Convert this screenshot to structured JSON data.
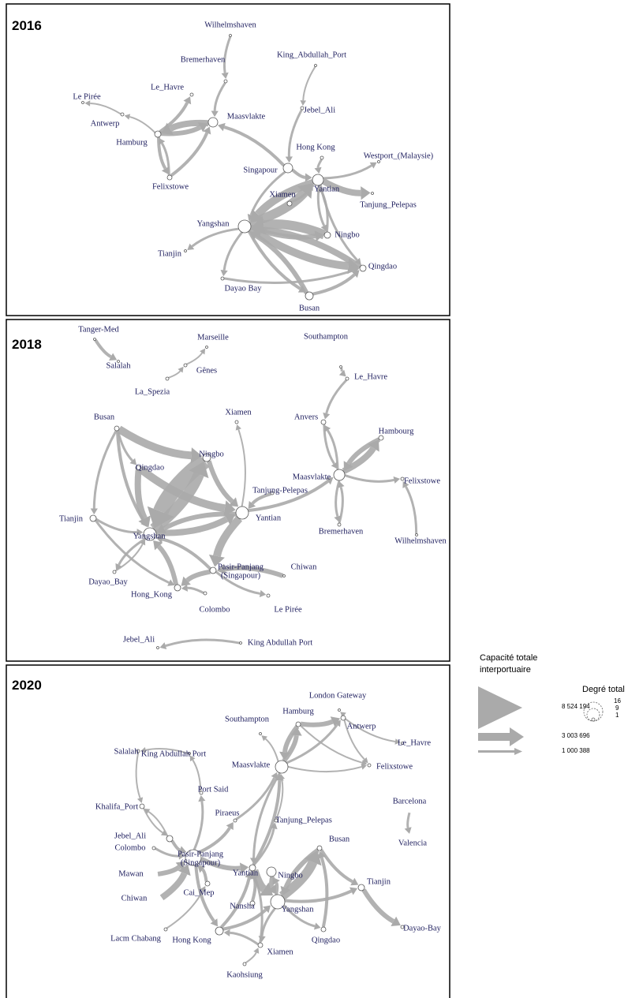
{
  "panels": [
    {
      "year": "2016",
      "nodes": [
        "Wilhelmshaven",
        "Bremerhaven",
        "King_Abdullah_Port",
        "Le_Havre",
        "Le Pirée",
        "Maasvlakte",
        "Antwerp",
        "Jebel_Ali",
        "Hamburg",
        "Hong Kong",
        "Westport_(Malaysie)",
        "Singapour",
        "Felixstowe",
        "Xiamen",
        "Yantian",
        "Tanjung_Pelepas",
        "Yangshan",
        "Ningbo",
        "Tianjin",
        "Qingdao",
        "Dayao Bay",
        "Busan"
      ]
    },
    {
      "year": "2018",
      "nodes": [
        "Tanger-Med",
        "Salalah",
        "Marseille",
        "Gênes",
        "La_Spezia",
        "Southampton",
        "Le_Havre",
        "Anvers",
        "Busan",
        "Xiamen",
        "Hambourg",
        "Ningbo",
        "Qingdao",
        "Maasvlakte",
        "Felixstowe",
        "Tanjung-Pelepas",
        "Yantian",
        "Tianjin",
        "Yangshan",
        "Bremerhaven",
        "Wilhelmshaven",
        [
          "Pasir-Panjang",
          "(Singapour)"
        ],
        "Chiwan",
        "Dayao_Bay",
        "Hong_Kong",
        "Colombo",
        "Le Pirée",
        "Jebel_Ali",
        "King Abdullah Port"
      ]
    },
    {
      "year": "2020",
      "nodes": [
        "London Gateway",
        "Hamburg",
        "Antwerp",
        "Southampton",
        "Le_Havre",
        "King Abdullah Port",
        "Salalah",
        "Felixstowe",
        "Maasvlakte",
        "Port Said",
        "Barcelona",
        "Valencia",
        "Khalifa_Port",
        "Piraeus",
        "Tanjung_Pelepas",
        "Jebel_Ali",
        "Busan",
        "Colombo",
        [
          "Pasir-Panjang",
          "(Singapour)"
        ],
        "Yantian",
        "Ningbo",
        "Mawan",
        "Tianjin",
        "Cai_Mep",
        "Chiwan",
        "Nansha",
        "Yangshan",
        "Dayao-Bay",
        "Lacm Chabang",
        "Hong Kong",
        "Qingdao",
        "Xiamen",
        "Kaohsiung"
      ]
    }
  ],
  "legend": {
    "capacity_title": [
      "Capacité totale",
      "interportuaire"
    ],
    "capacity_labels": [
      "8 524 194",
      "3 003 696",
      "1 000 388"
    ],
    "degree_title": "Degré total",
    "degree_labels": [
      "16",
      "9",
      "1"
    ]
  }
}
